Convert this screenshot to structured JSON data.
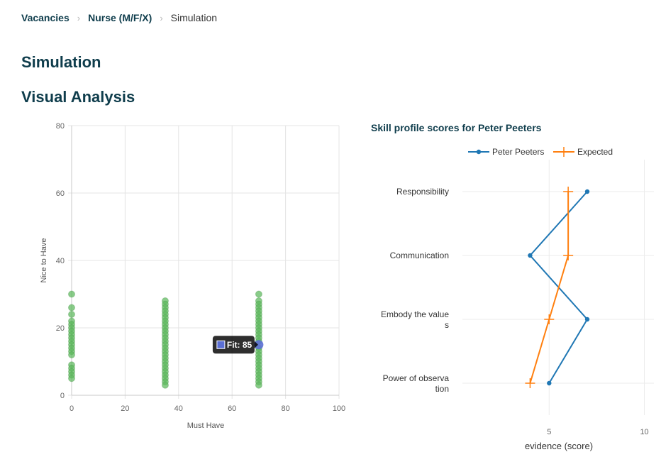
{
  "breadcrumb": {
    "items": [
      {
        "label": "Vacancies"
      },
      {
        "label": "Nurse (M/F/X)"
      }
    ],
    "current": "Simulation"
  },
  "page_title": "Simulation",
  "section_title": "Visual Analysis",
  "chart_data": [
    {
      "type": "scatter",
      "title": "",
      "xlabel": "Must Have",
      "ylabel": "Nice to Have",
      "xlim": [
        0,
        100
      ],
      "ylim": [
        0,
        80
      ],
      "xticks": [
        0,
        20,
        40,
        60,
        80,
        100
      ],
      "yticks": [
        0,
        20,
        40,
        60,
        80
      ],
      "grid": true,
      "colors": {
        "candidates": "#5cb85c",
        "highlight": "#5b6fd4"
      },
      "columns": [
        {
          "x": 0,
          "y": [
            30,
            26,
            24,
            22,
            21,
            20,
            19,
            18,
            17,
            16,
            15,
            14,
            13,
            12,
            9,
            8,
            7,
            6,
            5
          ]
        },
        {
          "x": 35,
          "y": [
            28,
            27,
            26,
            25,
            24,
            23,
            22,
            21,
            20,
            19,
            18,
            17,
            16,
            15,
            14,
            13,
            12,
            11,
            10,
            9,
            8,
            7,
            6,
            5,
            4,
            3
          ]
        },
        {
          "x": 70,
          "y": [
            30,
            28,
            27,
            26,
            25,
            24,
            23,
            22,
            21,
            20,
            19,
            18,
            17,
            16,
            14,
            13,
            12,
            11,
            10,
            9,
            8,
            7,
            6,
            5,
            4,
            3
          ]
        }
      ],
      "highlight": {
        "x": 70,
        "y": 15
      },
      "tooltip": {
        "label": "Fit: 85"
      }
    },
    {
      "type": "line",
      "title": "Skill profile scores for Peter Peeters",
      "xlabel": "evidence (score)",
      "xlim": [
        0,
        10.5
      ],
      "xticks": [
        5,
        10
      ],
      "grid": true,
      "legend_placement": "top",
      "categories": [
        "Responsibility",
        "Communication",
        "Embody the values",
        "Power of observation"
      ],
      "category_label_lines": [
        [
          "Responsibility"
        ],
        [
          "Communication"
        ],
        [
          "Embody the value",
          "s"
        ],
        [
          "Power of observa",
          "tion"
        ]
      ],
      "series": [
        {
          "name": "Peter Peeters",
          "values": [
            7,
            4,
            7,
            5
          ],
          "color": "#1f77b4"
        },
        {
          "name": "Expected",
          "values": [
            6,
            6,
            5,
            4
          ],
          "color": "#ff7f0e"
        }
      ]
    }
  ]
}
